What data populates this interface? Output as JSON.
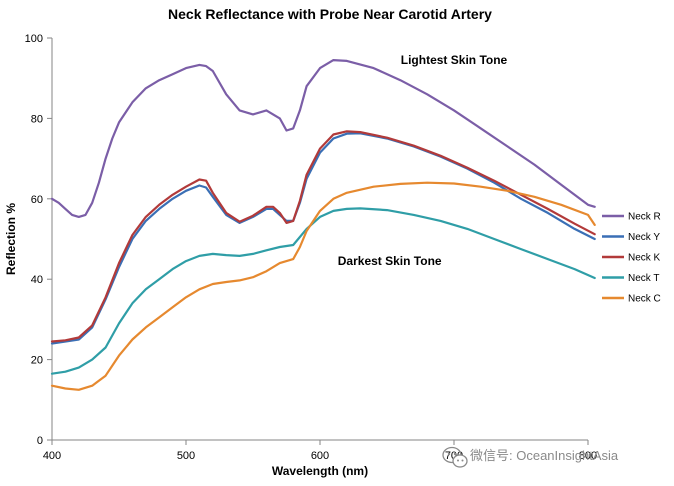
{
  "watermark": {
    "text": "微信号: OceanInsightAsia"
  },
  "chart_data": {
    "type": "line",
    "title": "Neck Reflectance  with Probe Near Carotid Artery",
    "xlabel": "Wavelength (nm)",
    "ylabel": "Reflection %",
    "xlim": [
      400,
      800
    ],
    "ylim": [
      0,
      100
    ],
    "x_ticks": [
      400,
      500,
      600,
      700,
      800
    ],
    "y_ticks": [
      0,
      20,
      40,
      60,
      80,
      100
    ],
    "grid": false,
    "legend_position": "right",
    "annotations": [
      {
        "text": "Lightest Skin Tone",
        "x": 700,
        "y": 93.5
      },
      {
        "text": "Darkest Skin Tone",
        "x": 652,
        "y": 43.5
      }
    ],
    "series": [
      {
        "name": "Neck R",
        "color": "#7b5ea7",
        "points": [
          [
            400,
            60
          ],
          [
            405,
            59
          ],
          [
            410,
            57.5
          ],
          [
            415,
            56
          ],
          [
            420,
            55.5
          ],
          [
            425,
            56
          ],
          [
            430,
            59
          ],
          [
            435,
            64
          ],
          [
            440,
            70
          ],
          [
            445,
            75
          ],
          [
            450,
            79
          ],
          [
            460,
            84
          ],
          [
            470,
            87.5
          ],
          [
            480,
            89.5
          ],
          [
            490,
            91
          ],
          [
            500,
            92.5
          ],
          [
            510,
            93.3
          ],
          [
            515,
            93
          ],
          [
            520,
            91.8
          ],
          [
            530,
            86
          ],
          [
            540,
            82
          ],
          [
            550,
            81
          ],
          [
            560,
            82
          ],
          [
            570,
            80
          ],
          [
            575,
            77
          ],
          [
            580,
            77.5
          ],
          [
            585,
            82
          ],
          [
            590,
            88
          ],
          [
            600,
            92.5
          ],
          [
            610,
            94.5
          ],
          [
            620,
            94.3
          ],
          [
            640,
            92.5
          ],
          [
            660,
            89.5
          ],
          [
            680,
            86
          ],
          [
            700,
            82
          ],
          [
            720,
            77.5
          ],
          [
            740,
            73
          ],
          [
            760,
            68.5
          ],
          [
            780,
            63.5
          ],
          [
            800,
            58.5
          ],
          [
            805,
            58
          ]
        ]
      },
      {
        "name": "Neck Y",
        "color": "#3a6fb5",
        "points": [
          [
            400,
            24
          ],
          [
            410,
            24.5
          ],
          [
            420,
            25
          ],
          [
            430,
            28
          ],
          [
            440,
            35
          ],
          [
            450,
            43
          ],
          [
            460,
            50
          ],
          [
            470,
            54.5
          ],
          [
            480,
            57.5
          ],
          [
            490,
            60
          ],
          [
            500,
            62
          ],
          [
            510,
            63.3
          ],
          [
            515,
            62.8
          ],
          [
            520,
            60.5
          ],
          [
            530,
            56
          ],
          [
            540,
            54
          ],
          [
            550,
            55.5
          ],
          [
            560,
            57.5
          ],
          [
            565,
            57.5
          ],
          [
            570,
            56
          ],
          [
            575,
            54.5
          ],
          [
            580,
            54.5
          ],
          [
            585,
            59
          ],
          [
            590,
            65
          ],
          [
            600,
            71.5
          ],
          [
            610,
            75
          ],
          [
            620,
            76.2
          ],
          [
            630,
            76.3
          ],
          [
            650,
            75
          ],
          [
            670,
            73
          ],
          [
            690,
            70.5
          ],
          [
            710,
            67.5
          ],
          [
            730,
            64
          ],
          [
            750,
            60
          ],
          [
            770,
            56.5
          ],
          [
            790,
            52.5
          ],
          [
            805,
            50
          ]
        ]
      },
      {
        "name": "Neck K",
        "color": "#b23a3a",
        "points": [
          [
            400,
            24.5
          ],
          [
            410,
            24.8
          ],
          [
            420,
            25.5
          ],
          [
            430,
            28.5
          ],
          [
            440,
            35.5
          ],
          [
            450,
            44
          ],
          [
            460,
            51
          ],
          [
            470,
            55.5
          ],
          [
            480,
            58.5
          ],
          [
            490,
            61
          ],
          [
            500,
            63
          ],
          [
            510,
            64.8
          ],
          [
            515,
            64.5
          ],
          [
            520,
            61.5
          ],
          [
            530,
            56.5
          ],
          [
            540,
            54.3
          ],
          [
            550,
            55.8
          ],
          [
            560,
            58
          ],
          [
            565,
            58
          ],
          [
            570,
            56.5
          ],
          [
            575,
            54
          ],
          [
            580,
            54.5
          ],
          [
            585,
            59.5
          ],
          [
            590,
            66
          ],
          [
            600,
            72.5
          ],
          [
            610,
            76
          ],
          [
            620,
            76.8
          ],
          [
            630,
            76.6
          ],
          [
            650,
            75.2
          ],
          [
            670,
            73.2
          ],
          [
            690,
            70.7
          ],
          [
            710,
            67.7
          ],
          [
            730,
            64.5
          ],
          [
            750,
            61
          ],
          [
            770,
            57.5
          ],
          [
            790,
            53.8
          ],
          [
            805,
            51.2
          ]
        ]
      },
      {
        "name": "Neck T",
        "color": "#2f9ea7",
        "points": [
          [
            400,
            16.5
          ],
          [
            410,
            17
          ],
          [
            420,
            18
          ],
          [
            430,
            20
          ],
          [
            440,
            23
          ],
          [
            450,
            29
          ],
          [
            460,
            34
          ],
          [
            470,
            37.5
          ],
          [
            480,
            40
          ],
          [
            490,
            42.5
          ],
          [
            500,
            44.5
          ],
          [
            510,
            45.8
          ],
          [
            520,
            46.3
          ],
          [
            530,
            46
          ],
          [
            540,
            45.8
          ],
          [
            550,
            46.3
          ],
          [
            560,
            47.2
          ],
          [
            570,
            48
          ],
          [
            580,
            48.5
          ],
          [
            590,
            52.5
          ],
          [
            600,
            55.5
          ],
          [
            610,
            57
          ],
          [
            620,
            57.5
          ],
          [
            630,
            57.6
          ],
          [
            650,
            57.2
          ],
          [
            670,
            56
          ],
          [
            690,
            54.5
          ],
          [
            710,
            52.5
          ],
          [
            730,
            50
          ],
          [
            750,
            47.5
          ],
          [
            770,
            45
          ],
          [
            790,
            42.5
          ],
          [
            805,
            40.3
          ]
        ]
      },
      {
        "name": "Neck C",
        "color": "#e6892f",
        "points": [
          [
            400,
            13.5
          ],
          [
            410,
            12.8
          ],
          [
            420,
            12.5
          ],
          [
            430,
            13.5
          ],
          [
            440,
            16
          ],
          [
            450,
            21
          ],
          [
            460,
            25
          ],
          [
            470,
            28
          ],
          [
            480,
            30.5
          ],
          [
            490,
            33
          ],
          [
            500,
            35.5
          ],
          [
            510,
            37.5
          ],
          [
            520,
            38.8
          ],
          [
            530,
            39.3
          ],
          [
            540,
            39.7
          ],
          [
            550,
            40.5
          ],
          [
            560,
            42
          ],
          [
            570,
            44
          ],
          [
            580,
            45
          ],
          [
            585,
            48
          ],
          [
            590,
            52
          ],
          [
            600,
            57
          ],
          [
            610,
            60
          ],
          [
            620,
            61.5
          ],
          [
            640,
            63
          ],
          [
            660,
            63.7
          ],
          [
            680,
            64
          ],
          [
            700,
            63.8
          ],
          [
            720,
            63
          ],
          [
            740,
            62
          ],
          [
            760,
            60.5
          ],
          [
            780,
            58.5
          ],
          [
            800,
            56
          ],
          [
            805,
            53.5
          ]
        ]
      }
    ]
  }
}
